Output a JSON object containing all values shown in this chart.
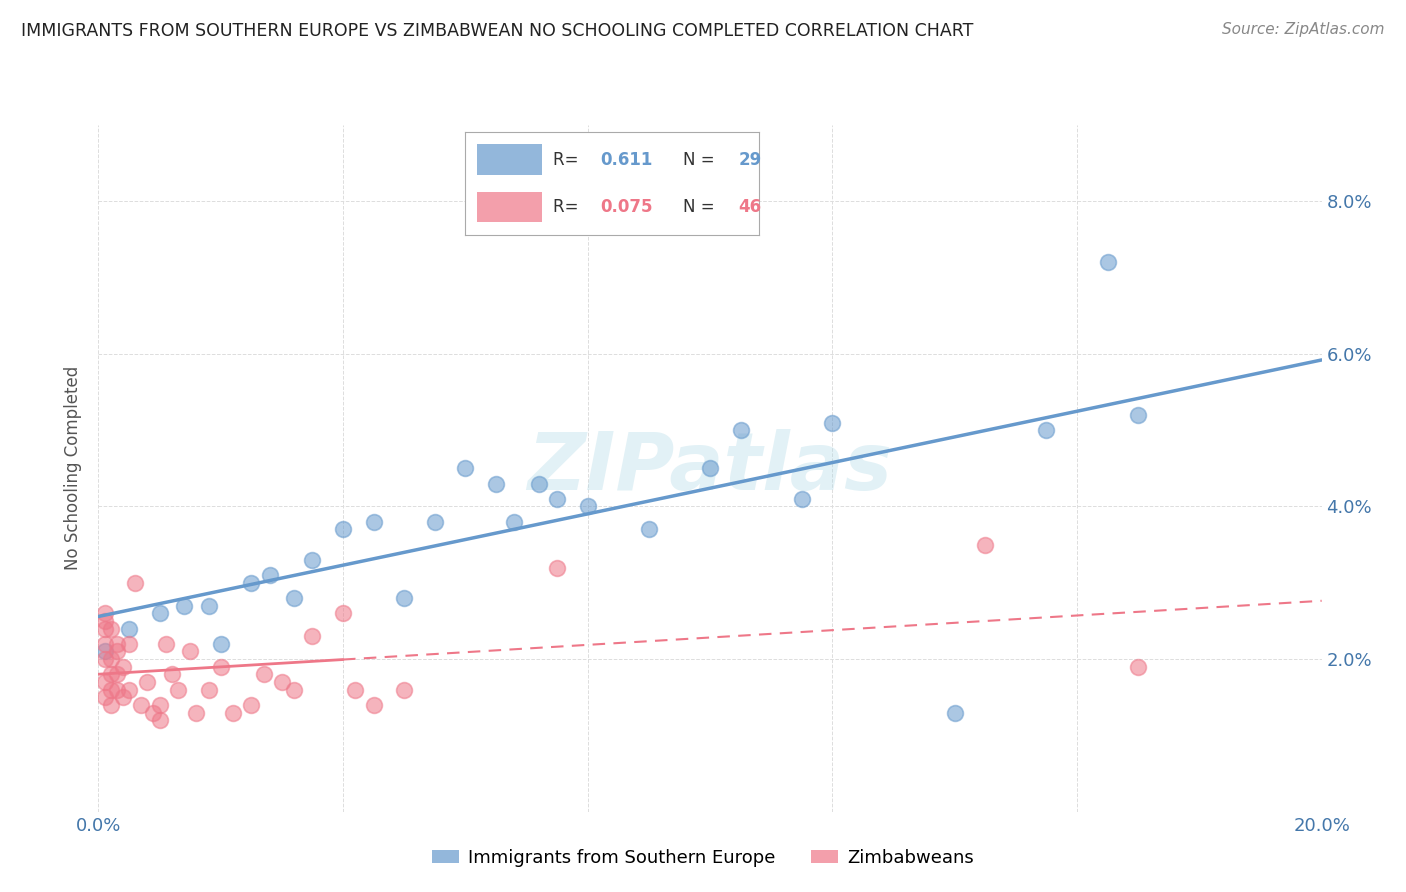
{
  "title": "IMMIGRANTS FROM SOUTHERN EUROPE VS ZIMBABWEAN NO SCHOOLING COMPLETED CORRELATION CHART",
  "source": "Source: ZipAtlas.com",
  "ylabel": "No Schooling Completed",
  "xlim": [
    0.0,
    0.2
  ],
  "ylim": [
    0.0,
    0.09
  ],
  "blue_R": "0.611",
  "blue_N": "29",
  "pink_R": "0.075",
  "pink_N": "46",
  "blue_color": "#6699cc",
  "pink_color": "#ee7788",
  "blue_label": "Immigrants from Southern Europe",
  "pink_label": "Zimbabweans",
  "watermark": "ZIPatlas",
  "blue_points_x": [
    0.001,
    0.005,
    0.01,
    0.014,
    0.018,
    0.02,
    0.025,
    0.028,
    0.032,
    0.035,
    0.04,
    0.045,
    0.05,
    0.055,
    0.06,
    0.065,
    0.068,
    0.072,
    0.075,
    0.08,
    0.09,
    0.1,
    0.105,
    0.115,
    0.12,
    0.14,
    0.155,
    0.165,
    0.17
  ],
  "blue_points_y": [
    0.021,
    0.024,
    0.026,
    0.027,
    0.027,
    0.022,
    0.03,
    0.031,
    0.028,
    0.033,
    0.037,
    0.038,
    0.028,
    0.038,
    0.045,
    0.043,
    0.038,
    0.043,
    0.041,
    0.04,
    0.037,
    0.045,
    0.05,
    0.041,
    0.051,
    0.013,
    0.05,
    0.072,
    0.052
  ],
  "pink_points_x": [
    0.001,
    0.001,
    0.001,
    0.001,
    0.001,
    0.001,
    0.001,
    0.002,
    0.002,
    0.002,
    0.002,
    0.002,
    0.003,
    0.003,
    0.003,
    0.003,
    0.004,
    0.004,
    0.005,
    0.005,
    0.006,
    0.007,
    0.008,
    0.009,
    0.01,
    0.01,
    0.011,
    0.012,
    0.013,
    0.015,
    0.016,
    0.018,
    0.02,
    0.022,
    0.025,
    0.027,
    0.03,
    0.032,
    0.035,
    0.04,
    0.042,
    0.045,
    0.05,
    0.075,
    0.145,
    0.17
  ],
  "pink_points_y": [
    0.024,
    0.025,
    0.026,
    0.022,
    0.02,
    0.017,
    0.015,
    0.024,
    0.02,
    0.018,
    0.016,
    0.014,
    0.021,
    0.022,
    0.018,
    0.016,
    0.015,
    0.019,
    0.022,
    0.016,
    0.03,
    0.014,
    0.017,
    0.013,
    0.012,
    0.014,
    0.022,
    0.018,
    0.016,
    0.021,
    0.013,
    0.016,
    0.019,
    0.013,
    0.014,
    0.018,
    0.017,
    0.016,
    0.023,
    0.026,
    0.016,
    0.014,
    0.016,
    0.032,
    0.035,
    0.019
  ],
  "background_color": "#ffffff",
  "grid_color": "#dddddd"
}
